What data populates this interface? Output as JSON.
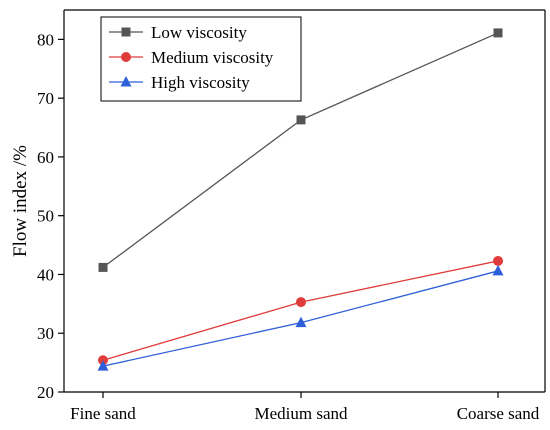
{
  "chart_data": {
    "type": "line",
    "categories": [
      "Fine sand",
      "Medium sand",
      "Coarse sand"
    ],
    "series": [
      {
        "name": "Low viscosity",
        "values": [
          41.2,
          66.3,
          81.1
        ],
        "color": "#555555",
        "marker": "square"
      },
      {
        "name": "Medium viscosity",
        "values": [
          25.4,
          35.3,
          42.3
        ],
        "color": "#e03c3c",
        "marker": "circle"
      },
      {
        "name": "High viscosity",
        "values": [
          24.4,
          31.8,
          40.6
        ],
        "color": "#2f5fd8",
        "marker": "triangle"
      }
    ],
    "ylabel": "Flow index /%",
    "xlabel": "",
    "ylim": [
      20,
      85
    ],
    "yticks": [
      20,
      30,
      40,
      50,
      60,
      70,
      80
    ],
    "grid": false,
    "legend_position": "top-left"
  }
}
